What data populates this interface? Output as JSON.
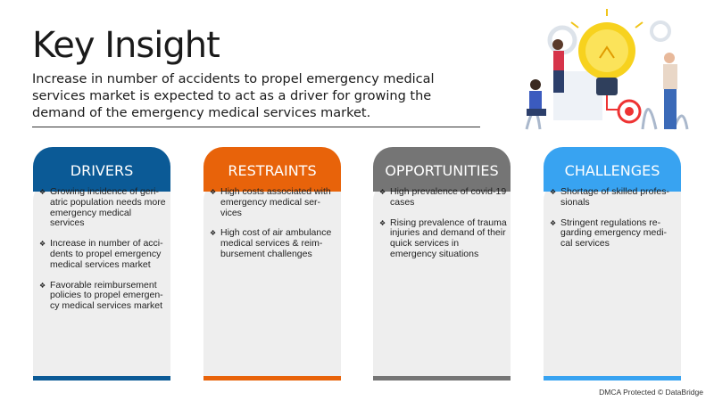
{
  "title": "Key Insight",
  "subtitle": "Increase in number of accidents to propel emergency medical services market is expected to act as a driver for growing the demand of the emergency medical services market.",
  "cards": [
    {
      "label": "DRIVERS",
      "color": "#0b5a96",
      "items": [
        "Growing incidence of geri-atric population needs more emergency medical services",
        "Increase in number of acci-dents to propel emergency medical services market",
        "Favorable reimbursement policies to propel emergen-cy medical services market"
      ]
    },
    {
      "label": "RESTRAINTS",
      "color": "#e8630a",
      "items": [
        "High costs associated with emergency medical ser-vices",
        "High cost of air ambulance medical services & reim-bursement challenges"
      ]
    },
    {
      "label": "OPPORTUNITIES",
      "color": "#757575",
      "items": [
        "High prevalence of covid-19 cases",
        "Rising prevalence of trauma injuries and demand of their quick services in emergency situations"
      ]
    },
    {
      "label": "CHALLENGES",
      "color": "#38a3f1",
      "items": [
        "Shortage of skilled profes-sionals",
        "Stringent regulations re-garding emergency medi-cal services"
      ]
    }
  ],
  "bullet_icon": "diamond-bullet",
  "footer": "DMCA Protected © DataBridge"
}
